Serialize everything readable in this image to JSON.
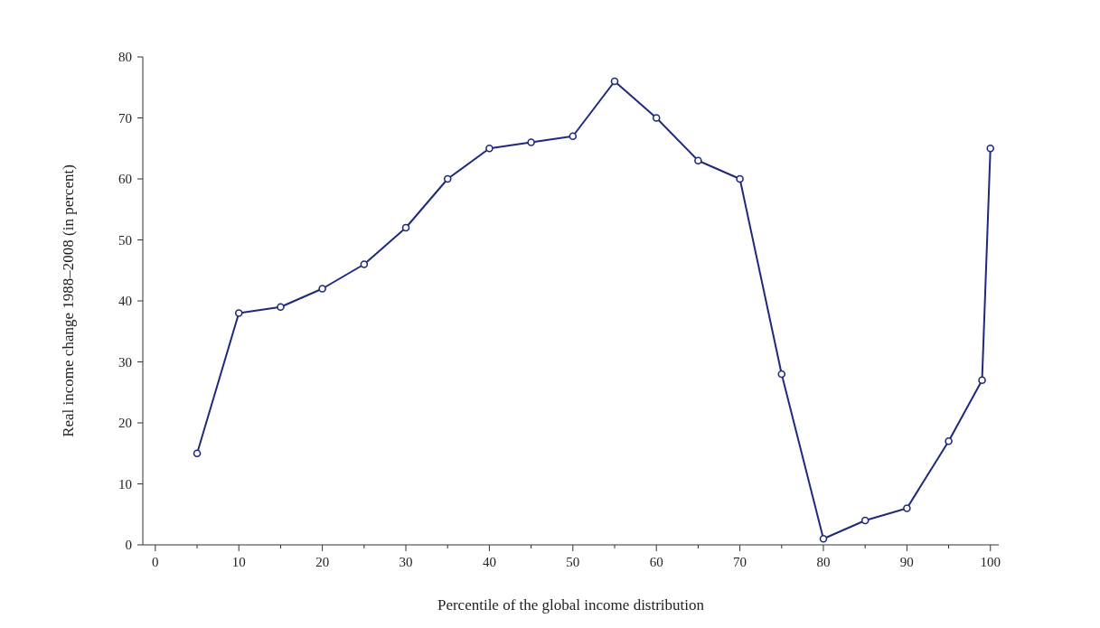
{
  "chart_data": {
    "type": "line",
    "xlabel": "Percentile of the global income distribution",
    "ylabel": "Real income change 1988–2008 (in percent)",
    "x": [
      5,
      10,
      15,
      20,
      25,
      30,
      35,
      40,
      45,
      50,
      55,
      60,
      65,
      70,
      75,
      80,
      85,
      90,
      95,
      99,
      100
    ],
    "series": [
      {
        "color": "#1f2a7a",
        "values": [
          15,
          38,
          39,
          42,
          46,
          52,
          60,
          65,
          66,
          67,
          76,
          70,
          63,
          60,
          28,
          1,
          4,
          6,
          17,
          27,
          65
        ]
      }
    ],
    "xlim": [
      -1.5,
      101
    ],
    "ylim": [
      0,
      80
    ],
    "xticks": [
      0,
      {
        "value": 5,
        "label": null
      },
      10,
      {
        "value": 15,
        "label": null
      },
      20,
      {
        "value": 25,
        "label": null
      },
      30,
      {
        "value": 35,
        "label": null
      },
      40,
      {
        "value": 45,
        "label": null
      },
      50,
      {
        "value": 55,
        "label": null
      },
      60,
      {
        "value": 65,
        "label": null
      },
      70,
      {
        "value": 75,
        "label": null
      },
      80,
      {
        "value": 85,
        "label": null
      },
      90,
      {
        "value": 95,
        "label": null
      },
      100
    ],
    "yticks": [
      0,
      10,
      20,
      30,
      40,
      50,
      60,
      70,
      80
    ],
    "grid": false,
    "marker": "circle",
    "line_style": "solid"
  }
}
